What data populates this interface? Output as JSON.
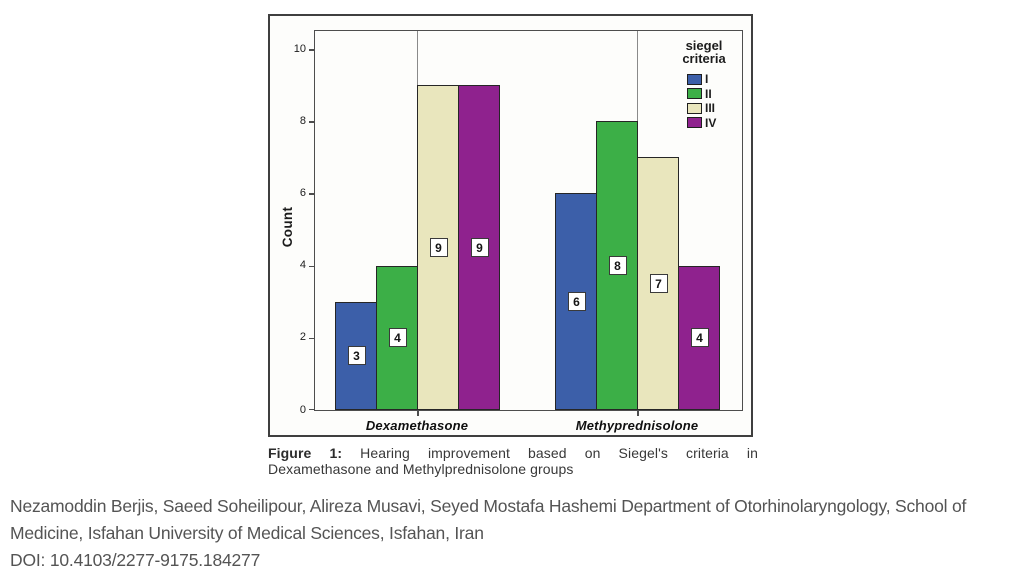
{
  "caption": {
    "label": "Figure 1:",
    "line1": "Hearing improvement based on Siegel's criteria in",
    "line2": "Dexamethasone and Methylprednisolone groups"
  },
  "footer": {
    "line1": "Nezamoddin Berjis, Saeed Soheilipour, Alireza Musavi, Seyed Mostafa Hashemi Department of Otorhinolaryngology, School of",
    "line2": "Medicine, Isfahan University of Medical Sciences, Isfahan, Iran",
    "line3": "DOI: 10.4103/2277-9175.184277"
  },
  "chart_data": {
    "type": "bar",
    "title": "",
    "xlabel": "",
    "ylabel": "Count",
    "ylim": [
      0,
      10.5
    ],
    "yticks": [
      0,
      2,
      4,
      6,
      8,
      10
    ],
    "grid": false,
    "legend_position": "top-right-inside",
    "legend_title": "siegel criteria",
    "legend_title_lines": [
      "siegel",
      "criteria"
    ],
    "categories": [
      "Dexamethasone",
      "Methyprednisolone"
    ],
    "series": [
      {
        "name": "I",
        "color": "#3C5FA9",
        "values": [
          3,
          6
        ]
      },
      {
        "name": "II",
        "color": "#3CAF47",
        "values": [
          4,
          8
        ]
      },
      {
        "name": "III",
        "color": "#E9E6BD",
        "values": [
          9,
          7
        ]
      },
      {
        "name": "IV",
        "color": "#8F228E",
        "values": [
          9,
          4
        ]
      }
    ],
    "bar_value_labels_shown": true
  }
}
